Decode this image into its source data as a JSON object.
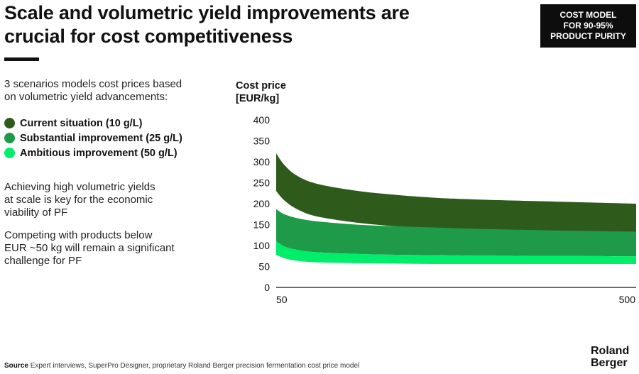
{
  "header": {
    "title_line1": "Scale and volumetric yield improvements are",
    "title_line2": "crucial for cost competitiveness"
  },
  "badge": {
    "line1": "COST MODEL",
    "line2": "FOR 90-95%",
    "line3": "PRODUCT PURITY"
  },
  "sidebar": {
    "intro_line1": "3 scenarios models cost prices based",
    "intro_line2": "on volumetric yield advancements:",
    "note1_line1": "Achieving high volumetric yields",
    "note1_line2": "at scale is key for the economic",
    "note1_line3": "viability of PF",
    "note2_line1": "Competing with products below",
    "note2_line2": "EUR ~50 kg will remain a significant",
    "note2_line3": "challenge for PF"
  },
  "footer": {
    "source_label": "Source",
    "source_text": "Expert interviews, SuperPro Designer, proprietary Roland Berger precision fermentation cost price model",
    "logo_line1": "Roland",
    "logo_line2": "Berger"
  },
  "chart_data": {
    "type": "area",
    "ylabel_line1": "Cost price",
    "ylabel_line2": "[EUR/kg]",
    "ylim": [
      0,
      400
    ],
    "yticks": [
      0,
      50,
      100,
      150,
      200,
      250,
      300,
      350,
      400
    ],
    "xlim": [
      50,
      500
    ],
    "xticks": [
      50,
      500
    ],
    "grid": false,
    "legend_position": "left",
    "x": [
      50,
      60,
      75,
      100,
      150,
      200,
      250,
      300,
      400,
      500
    ],
    "series": [
      {
        "name": "Current situation (10 g/L)",
        "color": "#2e5a1c",
        "upper": [
          320,
          293,
          268,
          248,
          231,
          221,
          214,
          210,
          205,
          200
        ],
        "lower": [
          230,
          208,
          188,
          170,
          155,
          146,
          141,
          137,
          133,
          130
        ]
      },
      {
        "name": "Substantial improvement (25 g/L)",
        "color": "#1f9a48",
        "upper": [
          187,
          175,
          166,
          158,
          150,
          146,
          143,
          140,
          136,
          133
        ],
        "lower": [
          110,
          98,
          90,
          84,
          80,
          78,
          77,
          76,
          75,
          74
        ]
      },
      {
        "name": "Ambitious improvement (50 g/L)",
        "color": "#00ee6a",
        "upper": [
          110,
          98,
          90,
          84,
          80,
          78,
          77,
          76,
          75,
          74
        ],
        "lower": [
          78,
          70,
          64,
          60,
          58,
          57,
          56,
          56,
          56,
          56
        ]
      }
    ]
  }
}
